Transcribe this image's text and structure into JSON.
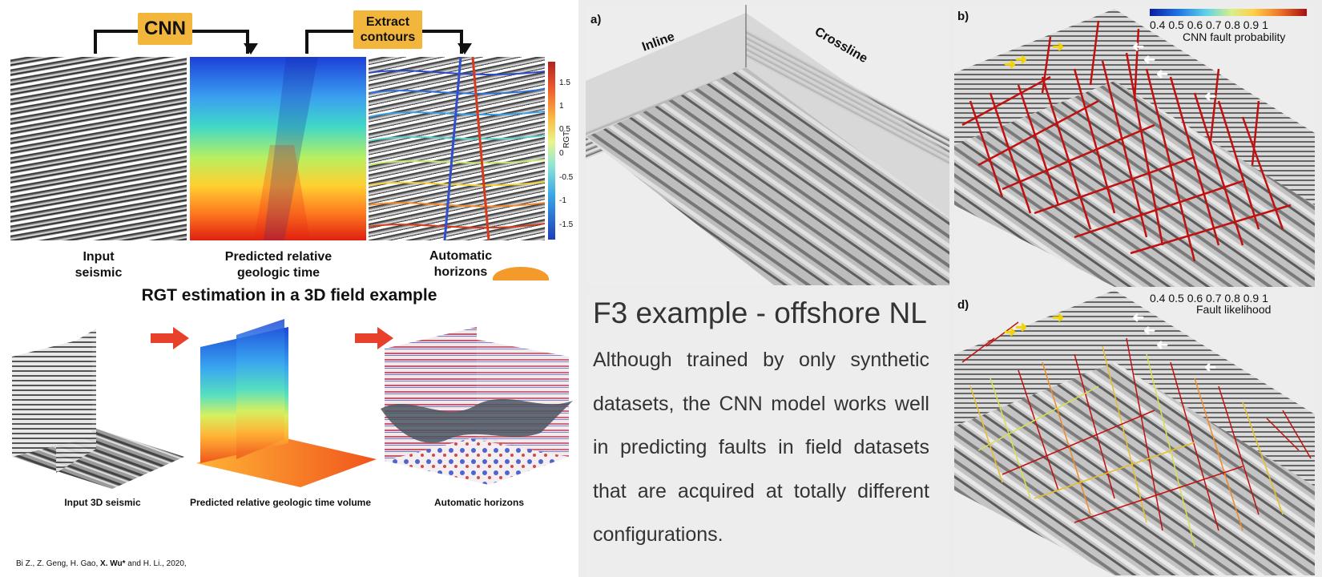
{
  "top_left": {
    "cnn_label": "CNN",
    "extract_label_1": "Extract",
    "extract_label_2": "contours",
    "caption_1a": "Input",
    "caption_1b": "seismic",
    "caption_2a": "Predicted relative",
    "caption_2b": "geologic time",
    "caption_3a": "Automatic",
    "caption_3b": "horizons",
    "colorbar_label": "RGT",
    "colorbar_ticks": [
      "1.5",
      "1",
      "0.5",
      "0",
      "-0.5",
      "-1",
      "-1.5"
    ]
  },
  "bottom_left": {
    "title": "RGT estimation in a 3D field example",
    "caption_1": "Input 3D seismic",
    "caption_2": "Predicted relative geologic time volume",
    "caption_3": "Automatic horizons",
    "citation_prefix": "Bi Z., Z. Geng, H. Gao, ",
    "citation_bold": "X. Wu*",
    "citation_suffix": " and H. Li., 2020,"
  },
  "panel_a": {
    "letter": "a)",
    "inline": "Inline",
    "crossline": "Crossline"
  },
  "panel_b": {
    "letter": "b)",
    "colorbar_ticks": "0.4  0.5  0.6  0.7  0.8  0.9   1",
    "colorbar_label": "CNN fault probability"
  },
  "panel_d": {
    "letter": "d)",
    "colorbar_ticks": "0.4  0.5  0.6  0.7  0.8  0.9   1",
    "colorbar_label": "Fault likelihood"
  },
  "middle_text": {
    "title": "F3 example - offshore NL",
    "body": "Although trained by only synthetic datasets, the CNN model works well in predicting faults in field datasets that are acquired at totally different configurations."
  },
  "colors": {
    "yellow_box": "#f3b63c",
    "red_arrow": "#e8402a",
    "fault_red": "#c01010"
  }
}
